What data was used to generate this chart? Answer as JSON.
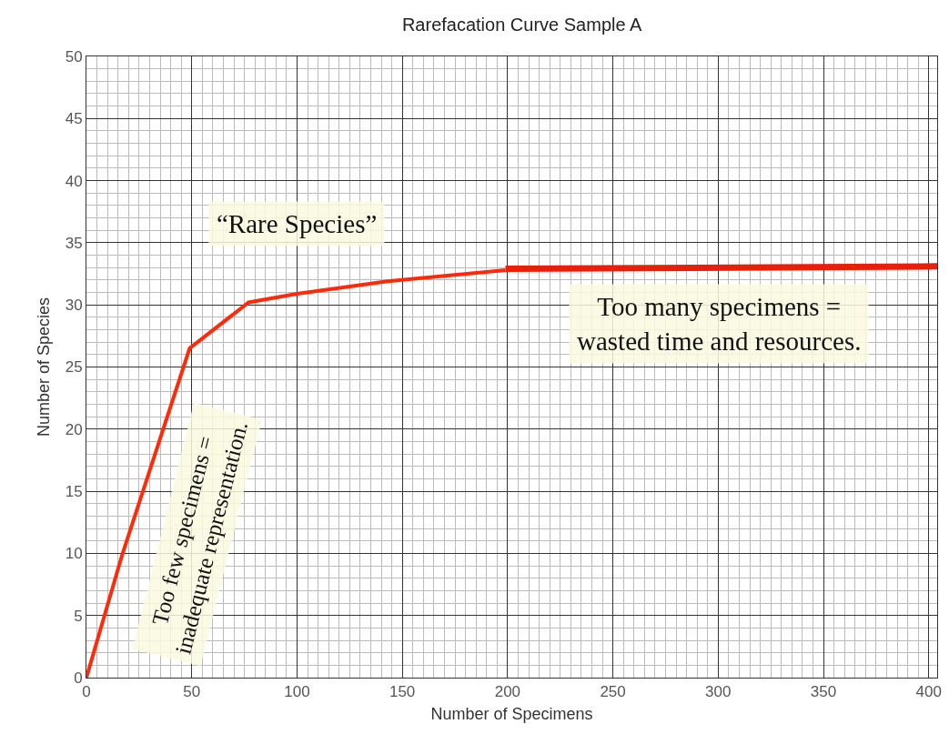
{
  "chart_data": {
    "type": "line",
    "title": "Rarefacation Curve Sample A",
    "xlabel": "Number of Specimens",
    "ylabel": "Number of Species",
    "xlim": [
      0,
      404
    ],
    "xticks": [
      0,
      50,
      100,
      150,
      200,
      250,
      300,
      350,
      400
    ],
    "ylim": [
      0,
      50
    ],
    "yticks": [
      0,
      5,
      10,
      15,
      20,
      25,
      30,
      35,
      40,
      45,
      50
    ],
    "grid": true,
    "marker": "none",
    "line_style": "solid",
    "series": [
      {
        "color": "#ff2a0a",
        "x": [
          0,
          17,
          49,
          77,
          100,
          143,
          199
        ],
        "values": [
          0,
          9.9,
          26.5,
          30.2,
          30.9,
          31.9,
          32.8
        ]
      },
      {
        "color": "#e8200a",
        "x": [
          199,
          404
        ],
        "values": [
          32.9,
          33.1
        ]
      }
    ],
    "annotations": [
      "“Rare Species”",
      "Too many specimens =\nwasted time and resources.",
      "Too few specimens =\ninadequate representation."
    ]
  }
}
